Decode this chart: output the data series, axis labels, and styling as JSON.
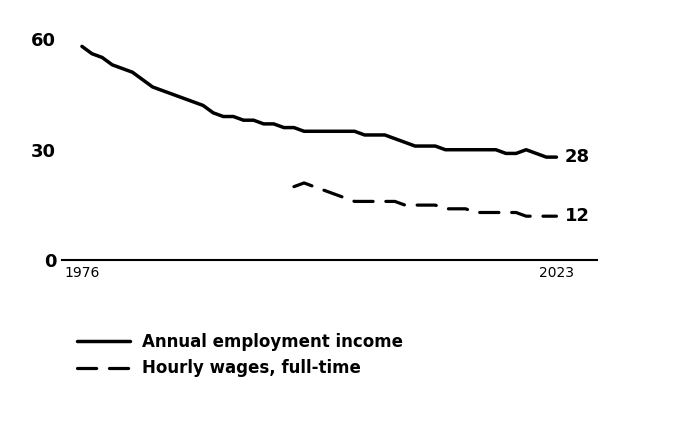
{
  "annual_income": {
    "years": [
      1976,
      1977,
      1978,
      1979,
      1980,
      1981,
      1982,
      1983,
      1984,
      1985,
      1986,
      1987,
      1988,
      1989,
      1990,
      1991,
      1992,
      1993,
      1994,
      1995,
      1996,
      1997,
      1998,
      1999,
      2000,
      2001,
      2002,
      2003,
      2004,
      2005,
      2006,
      2007,
      2008,
      2009,
      2010,
      2011,
      2012,
      2013,
      2014,
      2015,
      2016,
      2017,
      2018,
      2019,
      2020,
      2021,
      2022,
      2023
    ],
    "values": [
      58,
      56,
      55,
      53,
      52,
      51,
      49,
      47,
      46,
      45,
      44,
      43,
      42,
      40,
      39,
      39,
      38,
      38,
      37,
      37,
      36,
      36,
      35,
      35,
      35,
      35,
      35,
      35,
      34,
      34,
      34,
      33,
      32,
      31,
      31,
      31,
      30,
      30,
      30,
      30,
      30,
      30,
      29,
      29,
      30,
      29,
      28,
      28
    ]
  },
  "hourly_wages": {
    "years": [
      1997,
      1998,
      1999,
      2000,
      2001,
      2002,
      2003,
      2004,
      2005,
      2006,
      2007,
      2008,
      2009,
      2010,
      2011,
      2012,
      2013,
      2014,
      2015,
      2016,
      2017,
      2018,
      2019,
      2020,
      2021,
      2022,
      2023
    ],
    "values": [
      20,
      21,
      20,
      19,
      18,
      17,
      16,
      16,
      16,
      16,
      16,
      15,
      15,
      15,
      15,
      14,
      14,
      14,
      13,
      13,
      13,
      13,
      13,
      12,
      12,
      12,
      12
    ]
  },
  "end_labels": {
    "annual_income_label": "28",
    "hourly_wages_label": "12"
  },
  "yticks": [
    0,
    30,
    60
  ],
  "xticks": [
    1976,
    2023
  ],
  "xlim": [
    1974,
    2027
  ],
  "ylim": [
    -3,
    67
  ],
  "line_color": "#000000",
  "linewidth_solid": 2.5,
  "linewidth_dashed": 2.3,
  "legend_labels": [
    "Annual employment income",
    "Hourly wages, full-time"
  ],
  "background_color": "#ffffff",
  "label_fontsize": 13,
  "tick_fontsize": 13,
  "legend_fontsize": 12
}
